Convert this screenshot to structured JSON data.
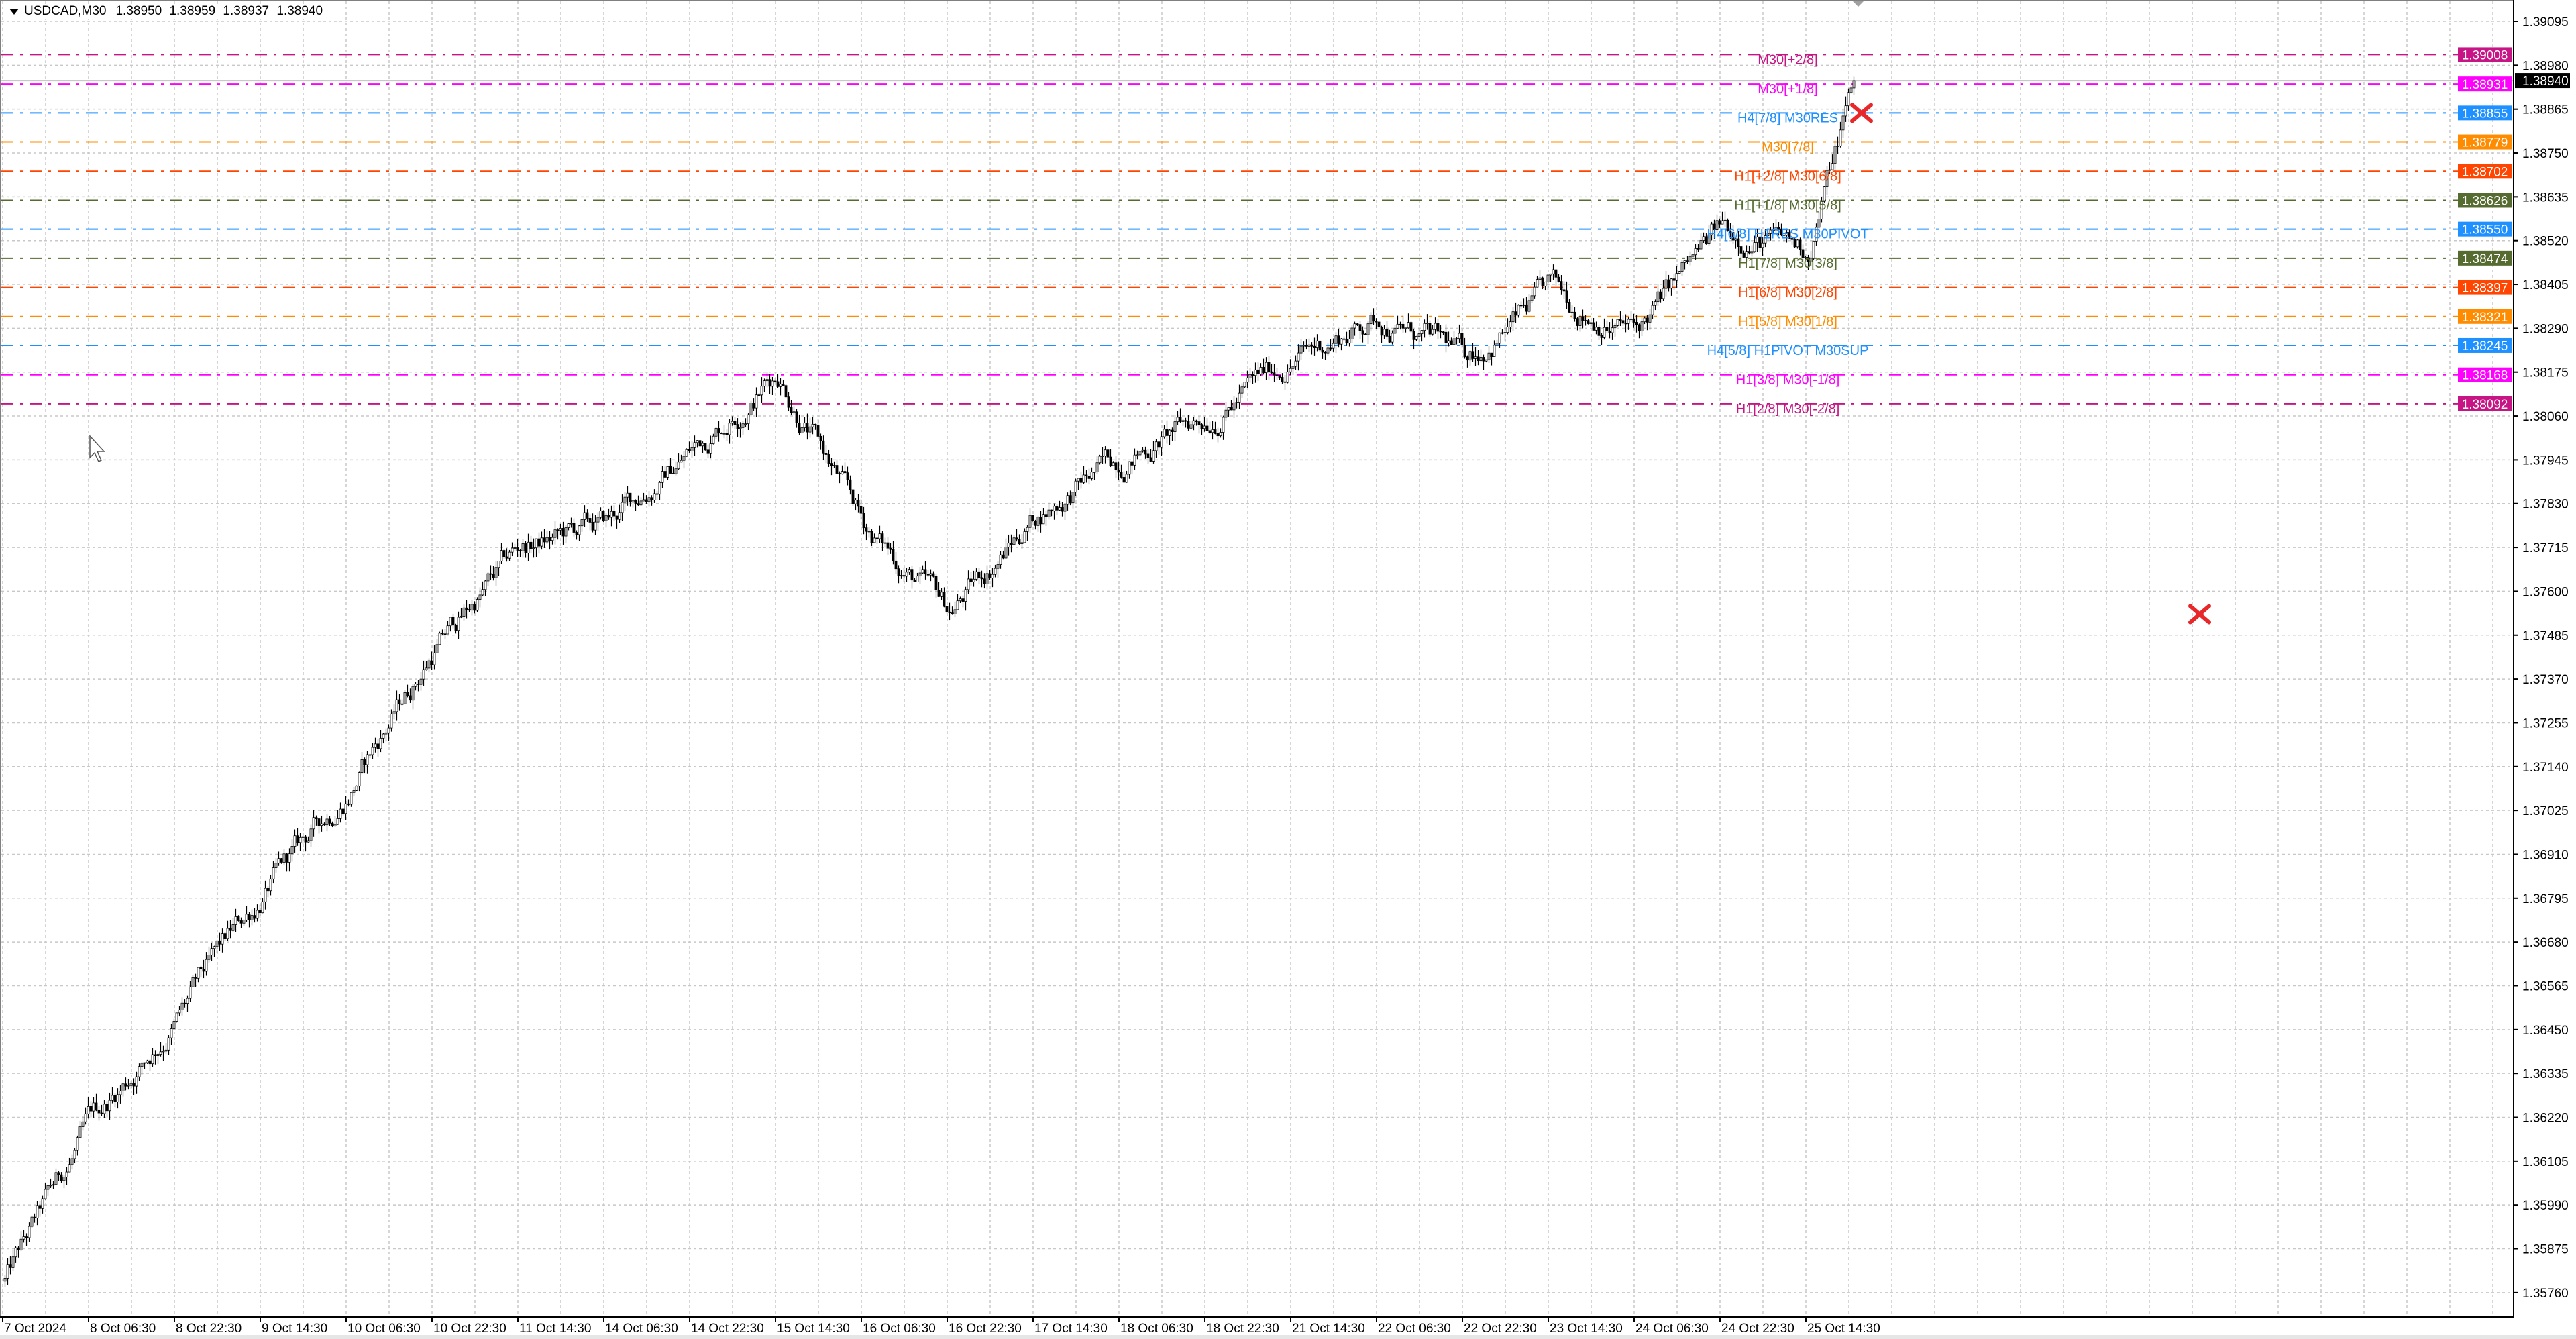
{
  "chart_window": {
    "symbol_timeframe": "USDCAD,M30",
    "ohlc": {
      "open": "1.38950",
      "high": "1.38959",
      "low": "1.38937",
      "close": "1.38940"
    }
  },
  "chart_data": {
    "type": "candlestick",
    "title": "USDCAD,M30",
    "x_tick_labels": [
      "7 Oct 2024",
      "8 Oct 06:30",
      "8 Oct 22:30",
      "9 Oct 14:30",
      "10 Oct 06:30",
      "10 Oct 22:30",
      "11 Oct 14:30",
      "14 Oct 06:30",
      "14 Oct 22:30",
      "15 Oct 14:30",
      "16 Oct 06:30",
      "16 Oct 22:30",
      "17 Oct 14:30",
      "18 Oct 06:30",
      "18 Oct 22:30",
      "21 Oct 14:30",
      "22 Oct 06:30",
      "22 Oct 22:30",
      "23 Oct 14:30",
      "24 Oct 06:30",
      "24 Oct 22:30",
      "25 Oct 14:30"
    ],
    "approx_close_at_x_ticks": [
      1.3579,
      1.362,
      1.3648,
      1.368,
      1.3708,
      1.3745,
      1.3771,
      1.3777,
      1.3797,
      1.3818,
      1.3777,
      1.3754,
      1.378,
      1.3795,
      1.3806,
      1.3821,
      1.3832,
      1.3821,
      1.3838,
      1.3828,
      1.3855,
      1.3849
    ],
    "last_close": 1.3894,
    "y_tick_labels": [
      "1.39095",
      "1.38980",
      "1.38865",
      "1.38750",
      "1.38635",
      "1.38520",
      "1.38405",
      "1.38290",
      "1.38175",
      "1.38060",
      "1.37945",
      "1.37830",
      "1.37715",
      "1.37600",
      "1.37485",
      "1.37370",
      "1.37255",
      "1.37140",
      "1.37025",
      "1.36910",
      "1.36795",
      "1.36680",
      "1.36565",
      "1.36450",
      "1.36335",
      "1.36220",
      "1.36105",
      "1.35990",
      "1.35875",
      "1.35760"
    ],
    "ylim": [
      1.3569,
      1.39144
    ],
    "grid": true,
    "current_price": {
      "value": "1.38940",
      "color": "#000000"
    },
    "levels": [
      {
        "price": "1.39008",
        "label": "M30[+2/8]",
        "color": "#C71585"
      },
      {
        "price": "1.38931",
        "label": "M30[+1/8]",
        "color": "#FF00FF"
      },
      {
        "price": "1.38855",
        "label": "H4[7/8] M30RES",
        "color": "#1E90FF"
      },
      {
        "price": "1.38779",
        "label": "M30[7/8]",
        "color": "#FF8C00"
      },
      {
        "price": "1.38702",
        "label": "H1[+2/8] M30[6/8]",
        "color": "#FF4500"
      },
      {
        "price": "1.38626",
        "label": "H1[+1/8] M30[5/8]",
        "color": "#556B2F"
      },
      {
        "price": "1.38550",
        "label": "H4[6/8] H1RES M30PIVOT",
        "color": "#1E90FF"
      },
      {
        "price": "1.38474",
        "label": "H1[7/8] M30[3/8]",
        "color": "#556B2F"
      },
      {
        "price": "1.38397",
        "label": "H1[6/8] M30[2/8]",
        "color": "#FF4500"
      },
      {
        "price": "1.38321",
        "label": "H1[5/8] M30[1/8]",
        "color": "#FF8C00"
      },
      {
        "price": "1.38245",
        "label": "H4[5/8] H1PIVOT M30SUP",
        "color": "#1E90FF"
      },
      {
        "price": "1.38168",
        "label": "H1[3/8] M30[-1/8]",
        "color": "#FF00FF"
      },
      {
        "price": "1.38092",
        "label": "H1[2/8] M30[-2/8]",
        "color": "#C71585"
      }
    ],
    "markers": [
      {
        "type": "cross-icon",
        "price": 1.38855,
        "at": "25 Oct, after last bar",
        "color": "#E8272A"
      },
      {
        "type": "cross-icon",
        "price": 1.3754,
        "at": "right of chart",
        "color": "#E8272A"
      }
    ],
    "bull_color": "#FFFFFF",
    "bear_color": "#000000"
  }
}
